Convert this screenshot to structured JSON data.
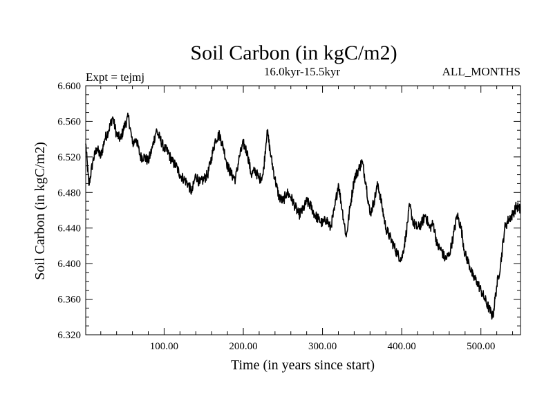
{
  "chart_data": {
    "type": "line",
    "title": "Soil Carbon (in kgC/m2)",
    "subtitle": "16.0kyr-15.5kyr",
    "left_label": "Expt = tejmj",
    "right_label": "ALL_MONTHS",
    "xlabel": "Time (in years since start)",
    "ylabel": "Soil Carbon (in kgC/m2)",
    "xlim": [
      1,
      550
    ],
    "ylim": [
      6.32,
      6.6
    ],
    "x_ticks": [
      100,
      200,
      300,
      400,
      500
    ],
    "x_tick_labels": [
      "100.00",
      "200.00",
      "300.00",
      "400.00",
      "500.00"
    ],
    "y_ticks": [
      6.32,
      6.36,
      6.4,
      6.44,
      6.48,
      6.52,
      6.56,
      6.6
    ],
    "y_tick_labels": [
      "6.320",
      "6.360",
      "6.400",
      "6.440",
      "6.480",
      "6.520",
      "6.560",
      "6.600"
    ],
    "grid": false,
    "series": [
      {
        "name": "Soil Carbon",
        "color": "#000000",
        "x": [
          1,
          5,
          10,
          15,
          20,
          25,
          30,
          35,
          40,
          45,
          50,
          55,
          60,
          65,
          70,
          75,
          80,
          85,
          90,
          95,
          100,
          105,
          110,
          115,
          120,
          125,
          130,
          135,
          140,
          145,
          150,
          155,
          160,
          165,
          170,
          175,
          180,
          185,
          190,
          195,
          200,
          205,
          210,
          215,
          220,
          225,
          230,
          235,
          240,
          245,
          250,
          255,
          260,
          265,
          270,
          275,
          280,
          285,
          290,
          295,
          300,
          305,
          310,
          315,
          320,
          325,
          330,
          335,
          340,
          345,
          350,
          355,
          360,
          365,
          370,
          375,
          380,
          385,
          390,
          395,
          400,
          405,
          410,
          415,
          420,
          425,
          430,
          435,
          440,
          445,
          450,
          455,
          460,
          465,
          470,
          475,
          480,
          485,
          490,
          495,
          500,
          505,
          510,
          515,
          520,
          525,
          530,
          535,
          540,
          545,
          550
        ],
        "values": [
          6.535,
          6.488,
          6.515,
          6.53,
          6.52,
          6.54,
          6.55,
          6.565,
          6.545,
          6.54,
          6.555,
          6.565,
          6.535,
          6.54,
          6.52,
          6.52,
          6.515,
          6.53,
          6.55,
          6.54,
          6.53,
          6.525,
          6.515,
          6.51,
          6.5,
          6.495,
          6.49,
          6.48,
          6.5,
          6.49,
          6.495,
          6.5,
          6.52,
          6.54,
          6.545,
          6.53,
          6.51,
          6.5,
          6.495,
          6.52,
          6.535,
          6.525,
          6.5,
          6.505,
          6.495,
          6.5,
          6.55,
          6.52,
          6.495,
          6.475,
          6.47,
          6.48,
          6.475,
          6.465,
          6.455,
          6.46,
          6.47,
          6.465,
          6.455,
          6.45,
          6.445,
          6.45,
          6.44,
          6.46,
          6.49,
          6.46,
          6.43,
          6.465,
          6.495,
          6.505,
          6.515,
          6.49,
          6.455,
          6.47,
          6.49,
          6.465,
          6.44,
          6.43,
          6.42,
          6.41,
          6.405,
          6.43,
          6.465,
          6.445,
          6.44,
          6.445,
          6.455,
          6.44,
          6.445,
          6.42,
          6.415,
          6.405,
          6.41,
          6.43,
          6.455,
          6.44,
          6.41,
          6.4,
          6.385,
          6.38,
          6.37,
          6.36,
          6.35,
          6.34,
          6.375,
          6.4,
          6.44,
          6.45,
          6.455,
          6.465,
          6.46
        ]
      }
    ]
  }
}
